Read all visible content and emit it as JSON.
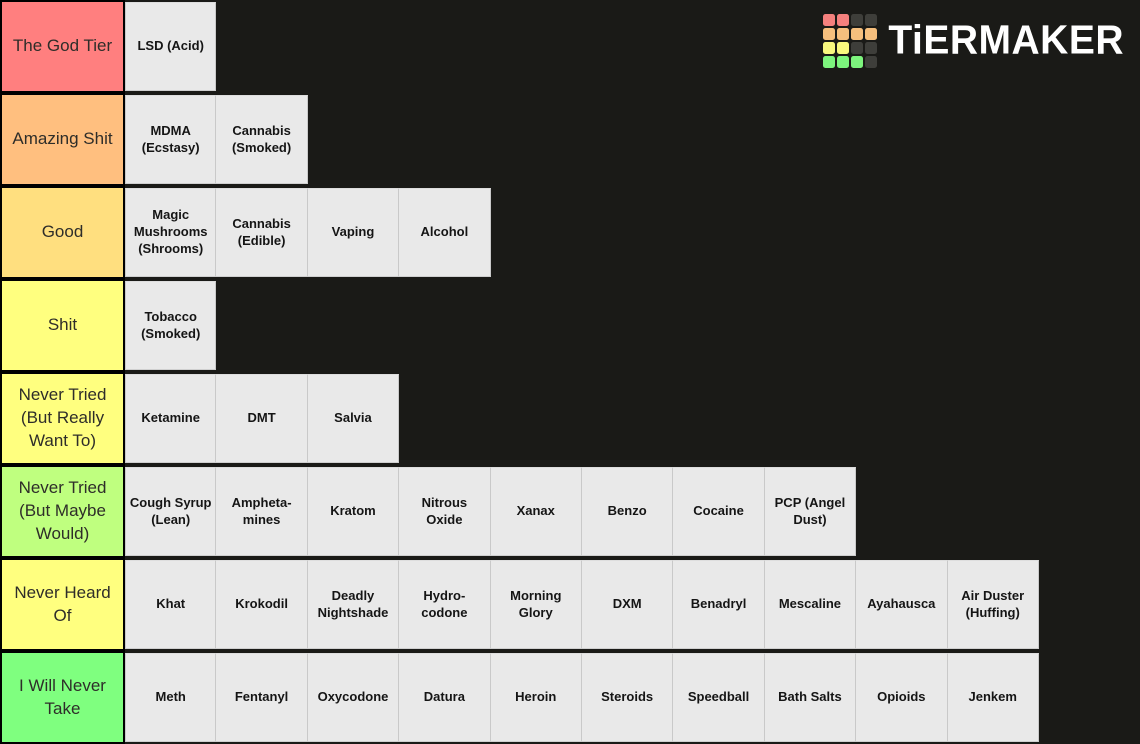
{
  "page": {
    "background_color": "#1a1a17",
    "cell_color": "#e9e9e9"
  },
  "logo": {
    "brand": "TiERMAKER",
    "grid_colors": [
      "#f4807d",
      "#f4807d",
      "#3e3e3a",
      "#3e3e3a",
      "#f6bf7d",
      "#f6bf7d",
      "#f6bf7d",
      "#f6bf7d",
      "#f8f87e",
      "#f8f87e",
      "#3e3e3a",
      "#3e3e3a",
      "#7df47d",
      "#7df47d",
      "#7df47d",
      "#3e3e3a"
    ]
  },
  "tiers": [
    {
      "label": "The God Tier",
      "color": "#FF7F7F",
      "items": [
        "LSD (Acid)"
      ]
    },
    {
      "label": "Amazing Shit",
      "color": "#FFBF7F",
      "items": [
        "MDMA (Ecstasy)",
        "Cannabis (Smoked)"
      ]
    },
    {
      "label": "Good",
      "color": "#FFDF7F",
      "items": [
        "Magic Mushrooms (Shrooms)",
        "Cannabis (Edible)",
        "Vaping",
        "Alcohol"
      ]
    },
    {
      "label": "Shit",
      "color": "#FFFF7F",
      "items": [
        "Tobacco (Smoked)"
      ]
    },
    {
      "label": "Never Tried (But Really Want To)",
      "color": "#FFFF7F",
      "items": [
        "Ketamine",
        "DMT",
        "Salvia"
      ]
    },
    {
      "label": "Never Tried (But Maybe Would)",
      "color": "#BFFF7F",
      "items": [
        "Cough Syrup (Lean)",
        "Ampheta-mines",
        "Kratom",
        "Nitrous Oxide",
        "Xanax",
        "Benzo",
        "Cocaine",
        "PCP (Angel Dust)"
      ]
    },
    {
      "label": "Never Heard Of",
      "color": "#FFFF7F",
      "items": [
        "Khat",
        "Krokodil",
        "Deadly Nightshade",
        "Hydro-codone",
        "Morning Glory",
        "DXM",
        "Benadryl",
        "Mescaline",
        "Ayahausca",
        "Air Duster (Huffing)"
      ]
    },
    {
      "label": "I Will Never Take",
      "color": "#7FFF7F",
      "items": [
        "Meth",
        "Fentanyl",
        "Oxycodone",
        "Datura",
        "Heroin",
        "Steroids",
        "Speedball",
        "Bath Salts",
        "Opioids",
        "Jenkem"
      ]
    }
  ]
}
